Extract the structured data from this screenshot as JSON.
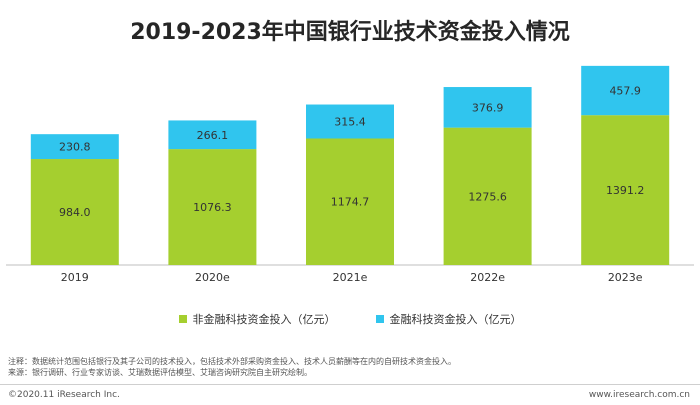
{
  "chart_data": {
    "type": "bar",
    "stacked": true,
    "title": "2019-2023年中国银行业技术资金投入情况",
    "categories": [
      "2019",
      "2020e",
      "2021e",
      "2022e",
      "2023e"
    ],
    "series": [
      {
        "name": "非金融科技资金投入（亿元）",
        "color": "#a5cf2f",
        "values": [
          984.0,
          1076.3,
          1174.7,
          1275.6,
          1391.2
        ]
      },
      {
        "name": "金融科技资金投入（亿元）",
        "color": "#30c5ee",
        "values": [
          230.8,
          266.1,
          315.4,
          376.9,
          457.9
        ]
      }
    ],
    "ylim": [
      0,
      1950
    ],
    "legend_position": "bottom",
    "grid": false
  },
  "notes": {
    "line1": "注释：数据统计范围包括银行及其子公司的技术投入，包括技术外部采购资金投入、技术人员薪酬等在内的自研技术资金投入。",
    "line2": "来源：银行调研、行业专家访谈、艾瑞数据评估模型、艾瑞咨询研究院自主研究绘制。"
  },
  "footer": {
    "copyright": "©2020.11 iResearch Inc.",
    "website": "www.iresearch.com.cn"
  }
}
